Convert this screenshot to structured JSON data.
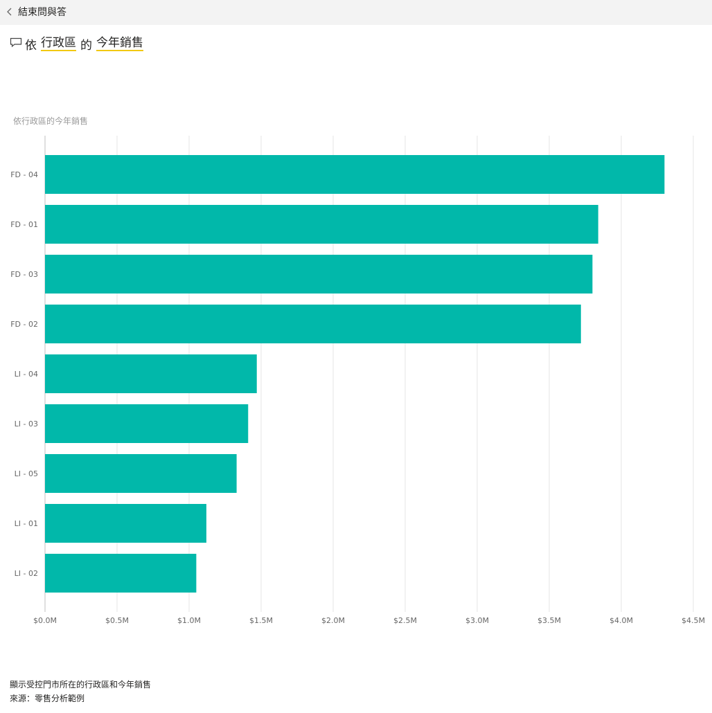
{
  "header": {
    "back_label": "結束問與答"
  },
  "question": {
    "prefix": "依",
    "field_1": "行政區",
    "connector": "的",
    "field_2": "今年銷售"
  },
  "chart_data": {
    "type": "bar",
    "orientation": "horizontal",
    "title": "依行政區的今年銷售",
    "categories": [
      "FD - 04",
      "FD - 01",
      "FD - 03",
      "FD - 02",
      "LI - 04",
      "LI - 03",
      "LI - 05",
      "LI - 01",
      "LI - 02"
    ],
    "values": [
      4.3,
      3.84,
      3.8,
      3.72,
      1.47,
      1.41,
      1.33,
      1.12,
      1.05
    ],
    "value_unit": "M",
    "xlim": [
      0,
      4.5
    ],
    "x_ticks": [
      "$0.0M",
      "$0.5M",
      "$1.0M",
      "$1.5M",
      "$2.0M",
      "$2.5M",
      "$3.0M",
      "$3.5M",
      "$4.0M",
      "$4.5M"
    ],
    "grid": true,
    "bar_color": "#01b8aa"
  },
  "footer": {
    "description": "顯示受控門市所在的行政區和今年銷售",
    "source": "來源：零售分析範例"
  }
}
